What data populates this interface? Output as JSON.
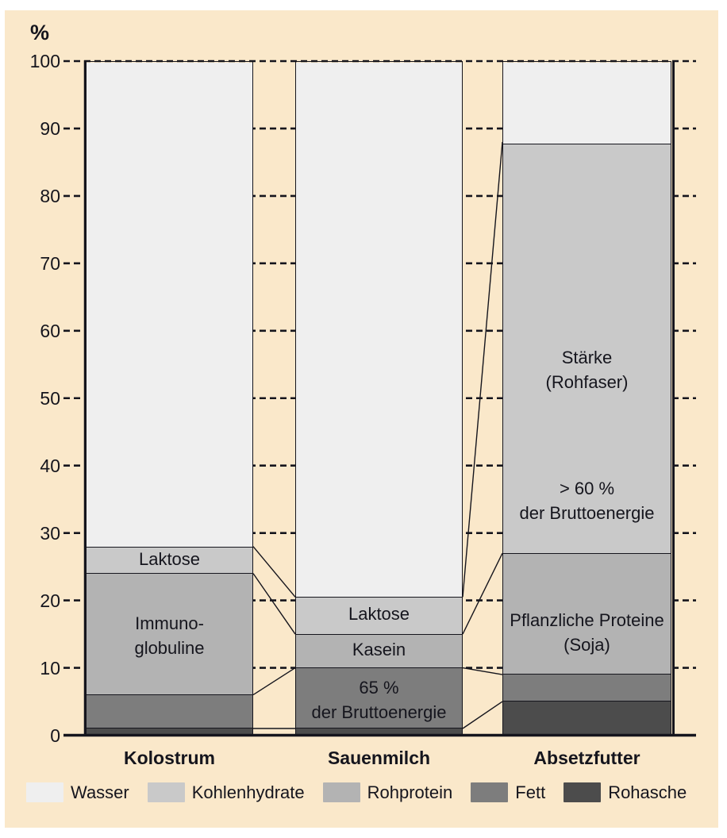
{
  "figure": {
    "panel_background": "#fae8ca",
    "ink_color": "#15151d"
  },
  "chart_data": {
    "type": "bar",
    "subtype": "stacked-percent",
    "title": "",
    "ylabel": "%",
    "xlabel": "",
    "ylim": [
      0,
      100
    ],
    "yticks": [
      0,
      10,
      20,
      30,
      40,
      50,
      60,
      70,
      80,
      90,
      100
    ],
    "grid": "dashed horizontal gridlines, solid baseline at 0",
    "categories": [
      "Kolostrum",
      "Sauenmilch",
      "Absetzfutter"
    ],
    "series": [
      {
        "name": "Rohasche",
        "color": "#4c4c4c",
        "values": [
          1,
          1,
          5
        ]
      },
      {
        "name": "Fett",
        "color": "#7d7d7d",
        "values": [
          5,
          9,
          4
        ]
      },
      {
        "name": "Rohprotein",
        "color": "#b3b3b3",
        "values": [
          18,
          5,
          18
        ]
      },
      {
        "name": "Kohlenhydrate",
        "color": "#c9c9c9",
        "values": [
          4,
          5.5,
          61
        ]
      },
      {
        "name": "Wasser",
        "color": "#efefef",
        "values": [
          72,
          79.5,
          12
        ]
      }
    ],
    "segment_labels": [
      {
        "bar": 0,
        "series": "Kohlenhydrate",
        "lines": [
          "Laktose"
        ],
        "center_pct": 26
      },
      {
        "bar": 0,
        "series": "Rohprotein",
        "lines": [
          "Immuno-",
          "globuline"
        ],
        "center_pct": 14.5
      },
      {
        "bar": 1,
        "series": "Kohlenhydrate",
        "lines": [
          "Laktose"
        ],
        "center_pct": 17.8
      },
      {
        "bar": 1,
        "series": "Rohprotein",
        "lines": [
          "Kasein"
        ],
        "center_pct": 12.5
      },
      {
        "bar": 1,
        "series": "Fett",
        "lines": [
          "65 %",
          "der Bruttoenergie"
        ],
        "center_pct": 5
      },
      {
        "bar": 2,
        "series": "Kohlenhydrate",
        "lines": [
          "Stärke",
          "(Rohfaser)"
        ],
        "center_pct": 54.2
      },
      {
        "bar": 2,
        "series": "Kohlenhydrate",
        "lines": [
          "> 60 %",
          "der Bruttoenergie"
        ],
        "center_pct": 34.7
      },
      {
        "bar": 2,
        "series": "Rohprotein",
        "lines": [
          "Pflanzliche Proteine",
          "(Soja)"
        ],
        "center_pct": 15
      }
    ],
    "connectors": "thin lines joining cumulative segment boundaries of adjacent bars",
    "legend": {
      "position": "bottom",
      "items": [
        "Wasser",
        "Kohlenhydrate",
        "Rohprotein",
        "Fett",
        "Rohasche"
      ]
    }
  }
}
